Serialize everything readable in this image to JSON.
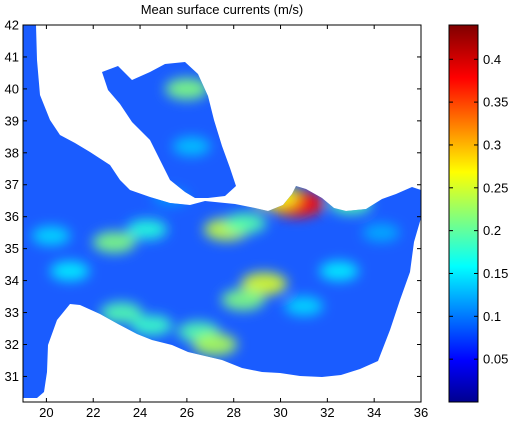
{
  "chart_data": {
    "type": "heatmap",
    "title": "Mean surface currents (m/s)",
    "xlabel": "",
    "ylabel": "",
    "xlim": [
      19,
      36
    ],
    "ylim": [
      30.2,
      42
    ],
    "x_ticks": [
      20,
      22,
      24,
      26,
      28,
      30,
      32,
      34,
      36
    ],
    "y_ticks": [
      31,
      32,
      33,
      34,
      35,
      36,
      37,
      38,
      39,
      40,
      41,
      42
    ],
    "colorbar": {
      "range": [
        0,
        0.44
      ],
      "ticks": [
        0.05,
        0.1,
        0.15,
        0.2,
        0.25,
        0.3,
        0.35,
        0.4
      ],
      "colormap": "jet"
    },
    "land_color": "#ffffff",
    "hotspots": [
      {
        "lon": 30.7,
        "lat": 36.4,
        "speed": 0.38
      },
      {
        "lon": 29.8,
        "lat": 36.6,
        "speed": 0.27
      },
      {
        "lon": 22.9,
        "lat": 35.2,
        "speed": 0.22
      },
      {
        "lon": 24.3,
        "lat": 35.6,
        "speed": 0.18
      },
      {
        "lon": 27.7,
        "lat": 35.6,
        "speed": 0.25
      },
      {
        "lon": 28.5,
        "lat": 35.8,
        "speed": 0.2
      },
      {
        "lon": 29.3,
        "lat": 33.9,
        "speed": 0.26
      },
      {
        "lon": 28.4,
        "lat": 33.4,
        "speed": 0.22
      },
      {
        "lon": 26.5,
        "lat": 32.4,
        "speed": 0.2
      },
      {
        "lon": 27.2,
        "lat": 32.0,
        "speed": 0.24
      },
      {
        "lon": 23.2,
        "lat": 33.0,
        "speed": 0.2
      },
      {
        "lon": 24.5,
        "lat": 32.6,
        "speed": 0.19
      },
      {
        "lon": 21.0,
        "lat": 34.3,
        "speed": 0.16
      },
      {
        "lon": 20.2,
        "lat": 35.4,
        "speed": 0.15
      },
      {
        "lon": 32.5,
        "lat": 34.3,
        "speed": 0.16
      },
      {
        "lon": 33.0,
        "lat": 36.4,
        "speed": 0.2
      },
      {
        "lon": 34.3,
        "lat": 35.5,
        "speed": 0.13
      },
      {
        "lon": 31.0,
        "lat": 33.2,
        "speed": 0.15
      },
      {
        "lon": 26.0,
        "lat": 40.0,
        "speed": 0.22
      },
      {
        "lon": 26.2,
        "lat": 38.2,
        "speed": 0.14
      },
      {
        "lon": 25.3,
        "lat": 36.6,
        "speed": 0.12
      }
    ]
  }
}
